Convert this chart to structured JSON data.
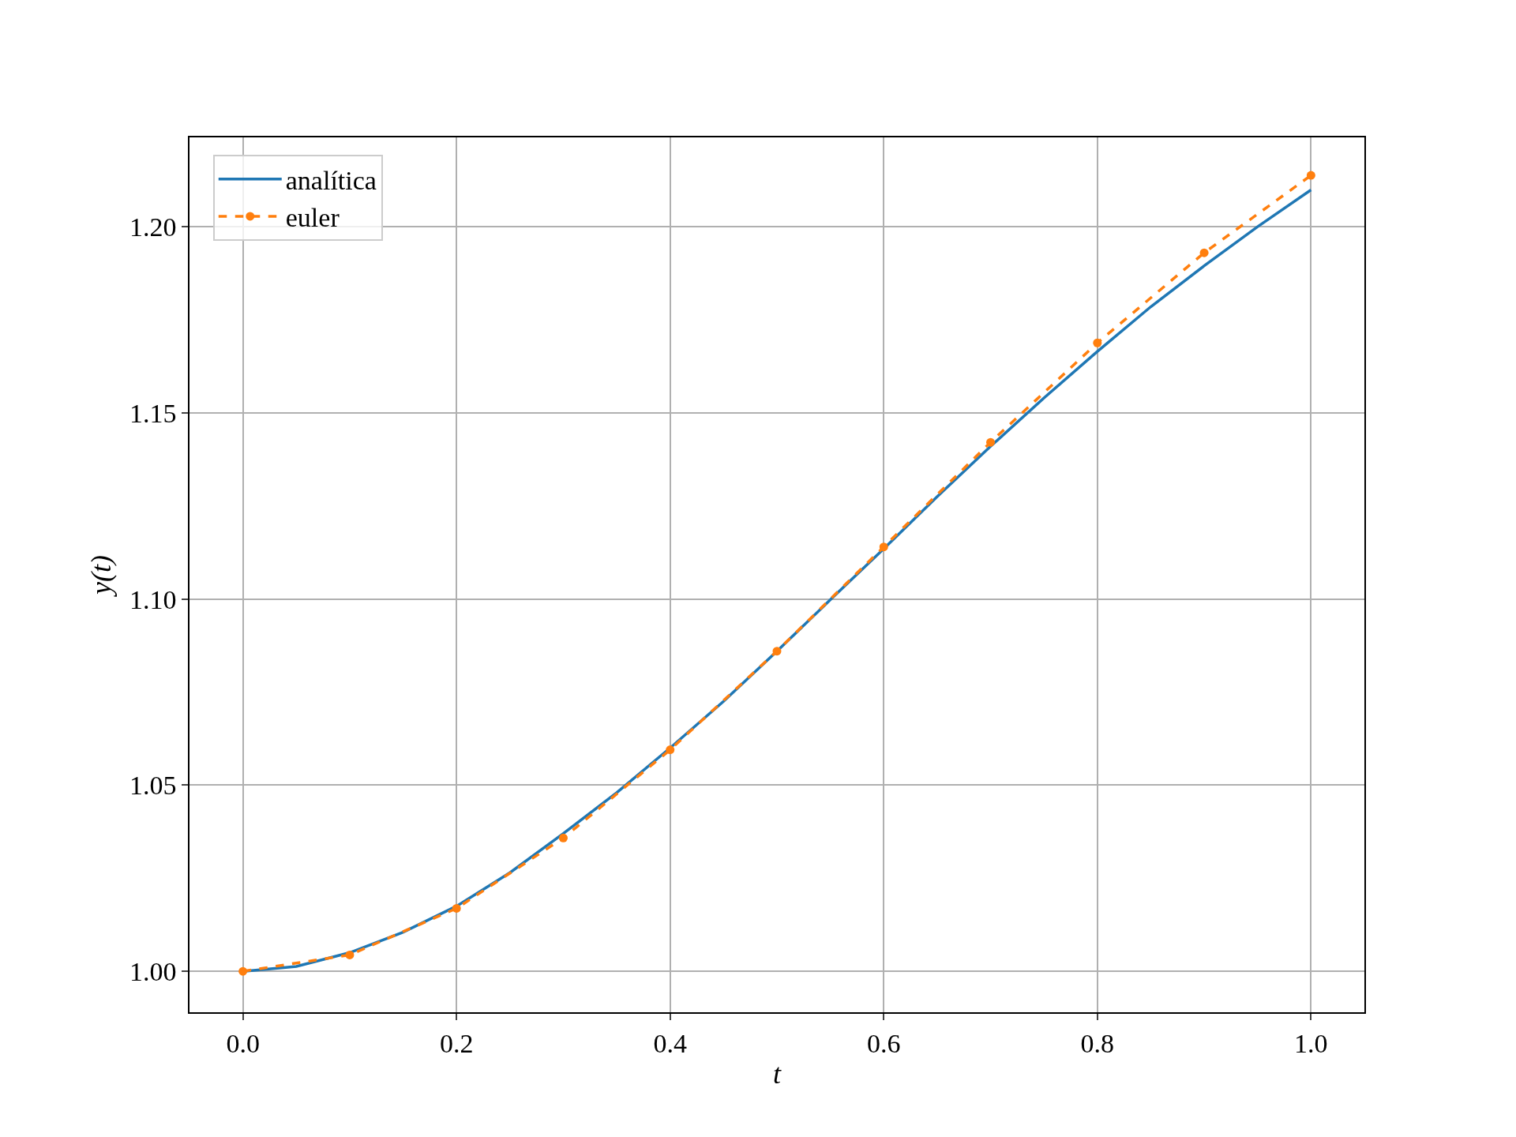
{
  "chart_data": {
    "type": "line",
    "xlabel": "t",
    "ylabel": "y(t)",
    "xlim": [
      -0.05,
      1.05
    ],
    "ylim": [
      0.989,
      1.224
    ],
    "xticks": [
      {
        "value": 0,
        "label": "0.0"
      },
      {
        "value": 0.2,
        "label": "0.2"
      },
      {
        "value": 0.4,
        "label": "0.4"
      },
      {
        "value": 0.6,
        "label": "0.6"
      },
      {
        "value": 0.8,
        "label": "0.8"
      },
      {
        "value": 1,
        "label": "1.0"
      }
    ],
    "yticks": [
      {
        "value": 1,
        "label": "1.00"
      },
      {
        "value": 1.05,
        "label": "1.05"
      },
      {
        "value": 1.1,
        "label": "1.10"
      },
      {
        "value": 1.15,
        "label": "1.15"
      },
      {
        "value": 1.2,
        "label": "1.20"
      }
    ],
    "grid": true,
    "legend": "top left",
    "series": [
      {
        "name": "analítica",
        "color": "#1f77b4",
        "marker": "none",
        "line_style": "solid",
        "x": [
          0,
          0.05,
          0.1,
          0.15,
          0.2,
          0.25,
          0.3,
          0.35,
          0.4,
          0.45,
          0.5,
          0.55,
          0.6,
          0.65,
          0.7,
          0.75,
          0.8,
          0.85,
          0.9,
          0.95,
          1
        ],
        "values": [
          1.0,
          1.0013,
          1.005,
          1.0105,
          1.0175,
          1.0265,
          1.037,
          1.048,
          1.06,
          1.0725,
          1.086,
          1.0998,
          1.1135,
          1.1275,
          1.141,
          1.154,
          1.1665,
          1.1785,
          1.1895,
          1.2,
          1.2099
        ]
      },
      {
        "name": "euler",
        "color": "#ff7f0e",
        "marker": "circle",
        "line_style": "dashed",
        "x": [
          0,
          0.1,
          0.2,
          0.3,
          0.4,
          0.5,
          0.6,
          0.7,
          0.8,
          0.9,
          1
        ],
        "values": [
          1.0,
          1.0044,
          1.0169,
          1.0358,
          1.0595,
          1.086,
          1.114,
          1.1421,
          1.1688,
          1.193,
          1.2138
        ]
      }
    ]
  }
}
